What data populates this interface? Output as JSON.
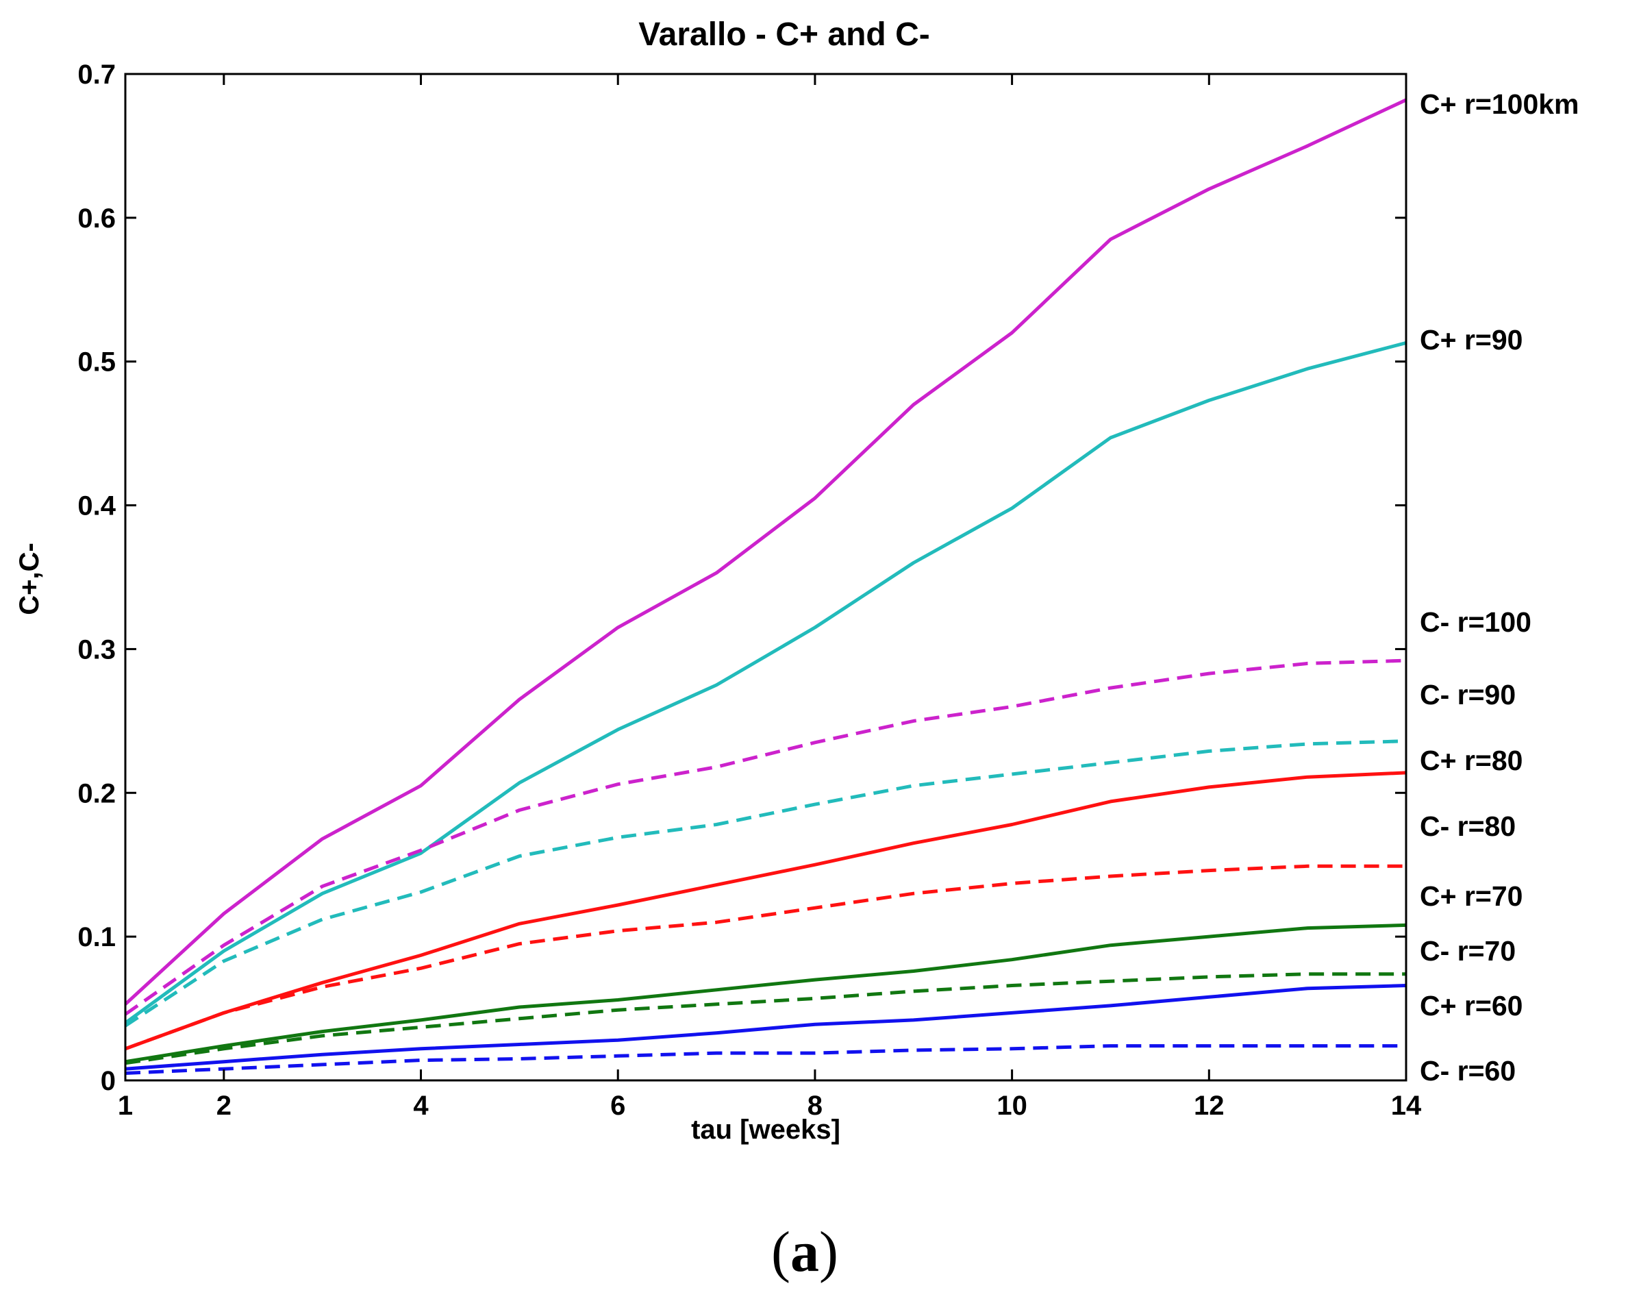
{
  "chart_data": {
    "type": "line",
    "title": "Varallo - C+ and C-",
    "xlabel": "tau [weeks]",
    "ylabel": "C+,C-",
    "xlim": [
      1,
      14
    ],
    "ylim": [
      0,
      0.7
    ],
    "xticks": [
      1,
      2,
      4,
      6,
      8,
      10,
      12,
      14
    ],
    "yticks": [
      0,
      0.1,
      0.2,
      0.3,
      0.4,
      0.5,
      0.6,
      0.7
    ],
    "x": [
      1,
      2,
      3,
      4,
      5,
      6,
      7,
      8,
      9,
      10,
      11,
      12,
      13,
      14
    ],
    "series": [
      {
        "name": "C+ r=100km",
        "color": "#cc22cc",
        "dash": "solid",
        "values": [
          0.053,
          0.116,
          0.168,
          0.205,
          0.265,
          0.315,
          0.353,
          0.405,
          0.47,
          0.52,
          0.585,
          0.62,
          0.65,
          0.682
        ]
      },
      {
        "name": "C+ r=90",
        "color": "#22bbbb",
        "dash": "solid",
        "values": [
          0.04,
          0.09,
          0.13,
          0.158,
          0.207,
          0.244,
          0.275,
          0.315,
          0.36,
          0.398,
          0.447,
          0.473,
          0.495,
          0.513
        ]
      },
      {
        "name": "C- r=100",
        "color": "#cc22cc",
        "dash": "dashed",
        "values": [
          0.046,
          0.094,
          0.135,
          0.16,
          0.188,
          0.206,
          0.218,
          0.235,
          0.25,
          0.26,
          0.273,
          0.283,
          0.29,
          0.292
        ]
      },
      {
        "name": "C- r=90",
        "color": "#22bbbb",
        "dash": "dashed",
        "values": [
          0.038,
          0.083,
          0.112,
          0.131,
          0.156,
          0.169,
          0.178,
          0.192,
          0.205,
          0.213,
          0.221,
          0.229,
          0.234,
          0.236
        ]
      },
      {
        "name": "C+ r=80",
        "color": "#ff1111",
        "dash": "solid",
        "values": [
          0.022,
          0.047,
          0.068,
          0.087,
          0.109,
          0.122,
          0.136,
          0.15,
          0.165,
          0.178,
          0.194,
          0.204,
          0.211,
          0.214
        ]
      },
      {
        "name": "C- r=80",
        "color": "#ff1111",
        "dash": "dashed",
        "values": [
          0.022,
          0.047,
          0.065,
          0.078,
          0.095,
          0.104,
          0.11,
          0.12,
          0.13,
          0.137,
          0.142,
          0.146,
          0.149,
          0.149
        ]
      },
      {
        "name": "C+ r=70",
        "color": "#117711",
        "dash": "solid",
        "values": [
          0.013,
          0.024,
          0.034,
          0.042,
          0.051,
          0.056,
          0.063,
          0.07,
          0.076,
          0.084,
          0.094,
          0.1,
          0.106,
          0.108
        ]
      },
      {
        "name": "C- r=70",
        "color": "#117711",
        "dash": "dashed",
        "values": [
          0.012,
          0.022,
          0.031,
          0.037,
          0.043,
          0.049,
          0.053,
          0.057,
          0.062,
          0.066,
          0.069,
          0.072,
          0.074,
          0.074
        ]
      },
      {
        "name": "C+ r=60",
        "color": "#1111ee",
        "dash": "solid",
        "values": [
          0.008,
          0.013,
          0.018,
          0.022,
          0.025,
          0.028,
          0.033,
          0.039,
          0.042,
          0.047,
          0.052,
          0.058,
          0.064,
          0.066
        ]
      },
      {
        "name": "C- r=60",
        "color": "#1111ee",
        "dash": "dashed",
        "values": [
          0.005,
          0.008,
          0.011,
          0.014,
          0.015,
          0.017,
          0.019,
          0.019,
          0.021,
          0.022,
          0.024,
          0.024,
          0.024,
          0.024
        ]
      }
    ],
    "legend_entries": [
      "C+ r=100km",
      "C+ r=90",
      "C- r=100",
      "C- r=90",
      "C+ r=80",
      "C- r=80",
      "C+ r=70",
      "C- r=70",
      "C+ r=60",
      "C- r=60"
    ],
    "legend_placement": "right, outside plot area",
    "grid": false
  },
  "caption": {
    "open": "(",
    "letter": "a",
    "close": ")"
  }
}
